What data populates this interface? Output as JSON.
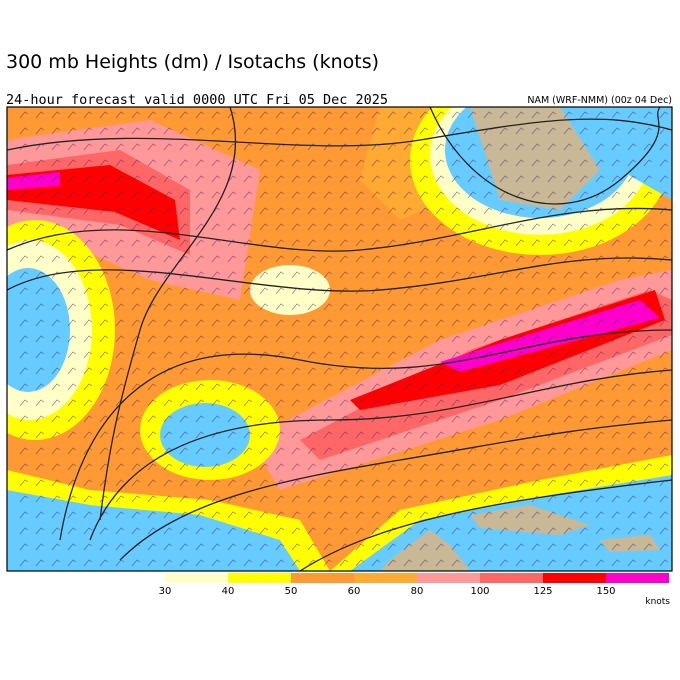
{
  "header": {
    "title": "300 mb Heights (dm) / Isotachs (knots)",
    "subtitle": "24-hour forecast valid 0000 UTC Fri 05 Dec 2025",
    "model": "NAM (WRF-NMM) (00z 04 Dec)"
  },
  "colorbar": {
    "ticks": [
      30,
      40,
      50,
      60,
      80,
      100,
      125,
      150
    ],
    "colors": [
      "#ffffc8",
      "#ffff00",
      "#ff9933",
      "#ffaa33",
      "#ff9999",
      "#ff6666",
      "#ff0000",
      "#ff00cc"
    ],
    "units": "knots"
  }
}
